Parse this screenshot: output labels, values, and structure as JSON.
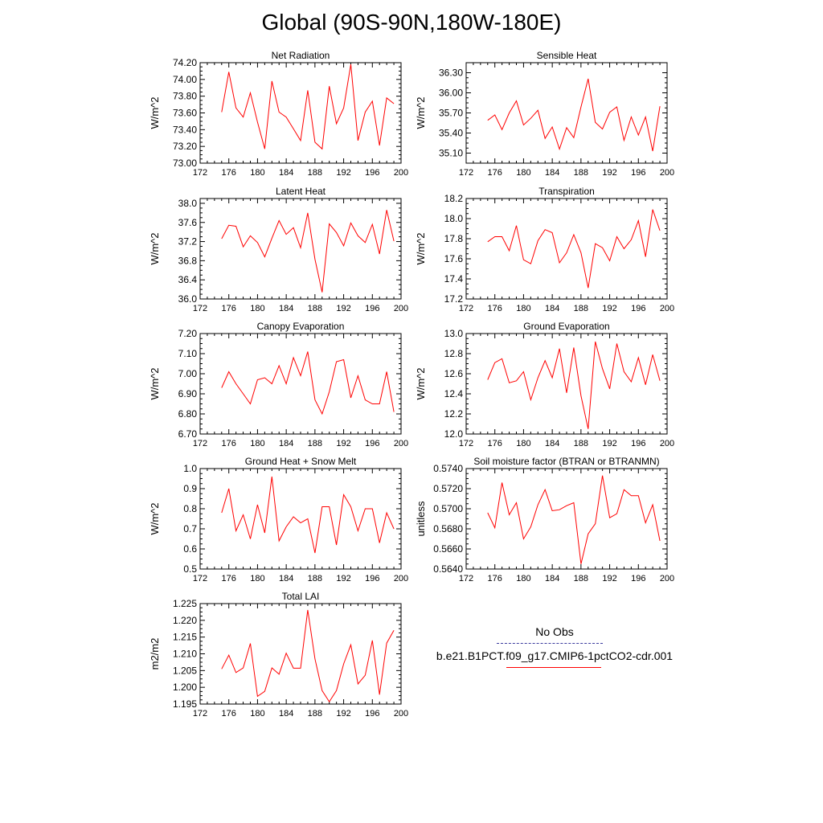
{
  "title": "Global (90S-90N,180W-180E)",
  "legend": {
    "items": [
      {
        "label": "No Obs",
        "color": "#3b3b9e",
        "style": "dashed"
      },
      {
        "label": "b.e21.B1PCT.f09_g17.CMIP6-1pctCO2-cdr.001",
        "color": "#ff0000",
        "style": "solid"
      }
    ]
  },
  "chart_data": [
    {
      "type": "line",
      "title": "Net Radiation",
      "ylabel": "W/m^2",
      "xlim": [
        172,
        200
      ],
      "ylim": [
        73.0,
        74.2
      ],
      "xticks": [
        172,
        176,
        180,
        184,
        188,
        192,
        196,
        200
      ],
      "yticks": [
        73.0,
        73.2,
        73.4,
        73.6,
        73.8,
        74.0,
        74.2
      ],
      "ytick_labels": [
        "73.00",
        "73.20",
        "73.40",
        "73.60",
        "73.80",
        "74.00",
        "74.20"
      ],
      "x": [
        175,
        176,
        177,
        178,
        179,
        180,
        181,
        182,
        183,
        184,
        185,
        186,
        187,
        188,
        189,
        190,
        191,
        192,
        193,
        194,
        195,
        196,
        197,
        198,
        199
      ],
      "series": [
        {
          "color": "#ff0000",
          "values": [
            73.61,
            74.09,
            73.66,
            73.55,
            73.84,
            73.49,
            73.17,
            73.98,
            73.61,
            73.55,
            73.41,
            73.27,
            73.87,
            73.25,
            73.17,
            73.92,
            73.47,
            73.66,
            74.18,
            73.27,
            73.61,
            73.74,
            73.21,
            73.78,
            73.71
          ]
        }
      ]
    },
    {
      "type": "line",
      "title": "Sensible Heat",
      "ylabel": "W/m^2",
      "xlim": [
        172,
        200
      ],
      "ylim": [
        34.95,
        36.45
      ],
      "xticks": [
        172,
        176,
        180,
        184,
        188,
        192,
        196,
        200
      ],
      "yticks": [
        35.1,
        35.4,
        35.7,
        36.0,
        36.3
      ],
      "ytick_labels": [
        "35.10",
        "35.40",
        "35.70",
        "36.00",
        "36.30"
      ],
      "x": [
        175,
        176,
        177,
        178,
        179,
        180,
        181,
        182,
        183,
        184,
        185,
        186,
        187,
        188,
        189,
        190,
        191,
        192,
        193,
        194,
        195,
        196,
        197,
        198,
        199
      ],
      "series": [
        {
          "color": "#ff0000",
          "values": [
            35.59,
            35.67,
            35.45,
            35.7,
            35.88,
            35.52,
            35.62,
            35.74,
            35.32,
            35.49,
            35.16,
            35.48,
            35.33,
            35.79,
            36.21,
            35.56,
            35.46,
            35.71,
            35.79,
            35.29,
            35.64,
            35.37,
            35.64,
            35.13,
            35.8
          ]
        }
      ]
    },
    {
      "type": "line",
      "title": "Latent Heat",
      "ylabel": "W/m^2",
      "xlim": [
        172,
        200
      ],
      "ylim": [
        36.0,
        38.1
      ],
      "xticks": [
        172,
        176,
        180,
        184,
        188,
        192,
        196,
        200
      ],
      "yticks": [
        36.0,
        36.4,
        36.8,
        37.2,
        37.6,
        38.0
      ],
      "ytick_labels": [
        "36.0",
        "36.4",
        "36.8",
        "37.2",
        "37.6",
        "38.0"
      ],
      "x": [
        175,
        176,
        177,
        178,
        179,
        180,
        181,
        182,
        183,
        184,
        185,
        186,
        187,
        188,
        189,
        190,
        191,
        192,
        193,
        194,
        195,
        196,
        197,
        198,
        199
      ],
      "series": [
        {
          "color": "#ff0000",
          "values": [
            37.26,
            37.54,
            37.52,
            37.09,
            37.32,
            37.18,
            36.88,
            37.27,
            37.64,
            37.35,
            37.49,
            37.07,
            37.8,
            36.83,
            36.14,
            37.57,
            37.39,
            37.11,
            37.59,
            37.32,
            37.18,
            37.56,
            36.94,
            37.86,
            37.21
          ]
        }
      ]
    },
    {
      "type": "line",
      "title": "Transpiration",
      "ylabel": "W/m^2",
      "xlim": [
        172,
        200
      ],
      "ylim": [
        17.2,
        18.2
      ],
      "xticks": [
        172,
        176,
        180,
        184,
        188,
        192,
        196,
        200
      ],
      "yticks": [
        17.2,
        17.4,
        17.6,
        17.8,
        18.0,
        18.2
      ],
      "ytick_labels": [
        "17.2",
        "17.4",
        "17.6",
        "17.8",
        "18.0",
        "18.2"
      ],
      "x": [
        175,
        176,
        177,
        178,
        179,
        180,
        181,
        182,
        183,
        184,
        185,
        186,
        187,
        188,
        189,
        190,
        191,
        192,
        193,
        194,
        195,
        196,
        197,
        198,
        199
      ],
      "series": [
        {
          "color": "#ff0000",
          "values": [
            17.77,
            17.82,
            17.82,
            17.68,
            17.93,
            17.59,
            17.55,
            17.78,
            17.89,
            17.86,
            17.56,
            17.66,
            17.84,
            17.66,
            17.31,
            17.75,
            17.71,
            17.58,
            17.82,
            17.7,
            17.79,
            17.98,
            17.62,
            18.09,
            17.88
          ]
        }
      ]
    },
    {
      "type": "line",
      "title": "Canopy Evaporation",
      "ylabel": "W/m^2",
      "xlim": [
        172,
        200
      ],
      "ylim": [
        6.7,
        7.2
      ],
      "xticks": [
        172,
        176,
        180,
        184,
        188,
        192,
        196,
        200
      ],
      "yticks": [
        6.7,
        6.8,
        6.9,
        7.0,
        7.1,
        7.2
      ],
      "ytick_labels": [
        "6.70",
        "6.80",
        "6.90",
        "7.00",
        "7.10",
        "7.20"
      ],
      "x": [
        175,
        176,
        177,
        178,
        179,
        180,
        181,
        182,
        183,
        184,
        185,
        186,
        187,
        188,
        189,
        190,
        191,
        192,
        193,
        194,
        195,
        196,
        197,
        198,
        199
      ],
      "series": [
        {
          "color": "#ff0000",
          "values": [
            6.93,
            7.01,
            6.95,
            6.9,
            6.85,
            6.97,
            6.98,
            6.95,
            7.04,
            6.95,
            7.08,
            6.99,
            7.11,
            6.87,
            6.8,
            6.91,
            7.06,
            7.07,
            6.88,
            6.99,
            6.87,
            6.85,
            6.85,
            7.01,
            6.81
          ]
        }
      ]
    },
    {
      "type": "line",
      "title": "Ground Evaporation",
      "ylabel": "W/m^2",
      "xlim": [
        172,
        200
      ],
      "ylim": [
        12.0,
        13.0
      ],
      "xticks": [
        172,
        176,
        180,
        184,
        188,
        192,
        196,
        200
      ],
      "yticks": [
        12.0,
        12.2,
        12.4,
        12.6,
        12.8,
        13.0
      ],
      "ytick_labels": [
        "12.0",
        "12.2",
        "12.4",
        "12.6",
        "12.8",
        "13.0"
      ],
      "x": [
        175,
        176,
        177,
        178,
        179,
        180,
        181,
        182,
        183,
        184,
        185,
        186,
        187,
        188,
        189,
        190,
        191,
        192,
        193,
        194,
        195,
        196,
        197,
        198,
        199
      ],
      "series": [
        {
          "color": "#ff0000",
          "values": [
            12.54,
            12.71,
            12.75,
            12.51,
            12.53,
            12.62,
            12.34,
            12.56,
            12.73,
            12.56,
            12.85,
            12.41,
            12.86,
            12.38,
            12.05,
            12.92,
            12.65,
            12.45,
            12.9,
            12.62,
            12.52,
            12.76,
            12.49,
            12.79,
            12.53
          ]
        }
      ]
    },
    {
      "type": "line",
      "title": "Ground Heat + Snow Melt",
      "ylabel": "W/m^2",
      "xlim": [
        172,
        200
      ],
      "ylim": [
        0.5,
        1.0
      ],
      "xticks": [
        172,
        176,
        180,
        184,
        188,
        192,
        196,
        200
      ],
      "yticks": [
        0.5,
        0.6,
        0.7,
        0.8,
        0.9,
        1.0
      ],
      "ytick_labels": [
        "0.5",
        "0.6",
        "0.7",
        "0.8",
        "0.9",
        "1.0"
      ],
      "x": [
        175,
        176,
        177,
        178,
        179,
        180,
        181,
        182,
        183,
        184,
        185,
        186,
        187,
        188,
        189,
        190,
        191,
        192,
        193,
        194,
        195,
        196,
        197,
        198,
        199
      ],
      "series": [
        {
          "color": "#ff0000",
          "values": [
            0.78,
            0.9,
            0.69,
            0.77,
            0.65,
            0.82,
            0.68,
            0.96,
            0.64,
            0.71,
            0.76,
            0.73,
            0.75,
            0.58,
            0.81,
            0.81,
            0.62,
            0.87,
            0.81,
            0.69,
            0.8,
            0.8,
            0.63,
            0.78,
            0.7
          ]
        }
      ]
    },
    {
      "type": "line",
      "title": "Soil moisture factor (BTRAN or BTRANMN)",
      "ylabel": "unitless",
      "xlim": [
        172,
        200
      ],
      "ylim": [
        0.564,
        0.574
      ],
      "xticks": [
        172,
        176,
        180,
        184,
        188,
        192,
        196,
        200
      ],
      "yticks": [
        0.564,
        0.566,
        0.568,
        0.57,
        0.572,
        0.574
      ],
      "ytick_labels": [
        "0.5640",
        "0.5660",
        "0.5680",
        "0.5700",
        "0.5720",
        "0.5740"
      ],
      "x": [
        175,
        176,
        177,
        178,
        179,
        180,
        181,
        182,
        183,
        184,
        185,
        186,
        187,
        188,
        189,
        190,
        191,
        192,
        193,
        194,
        195,
        196,
        197,
        198,
        199
      ],
      "series": [
        {
          "color": "#ff0000",
          "values": [
            0.5696,
            0.5681,
            0.5726,
            0.5694,
            0.5706,
            0.567,
            0.5682,
            0.5704,
            0.5719,
            0.5698,
            0.5699,
            0.5703,
            0.5706,
            0.5645,
            0.5675,
            0.5685,
            0.5733,
            0.5691,
            0.5695,
            0.5719,
            0.5713,
            0.5713,
            0.5686,
            0.5704,
            0.5668
          ]
        }
      ]
    },
    {
      "type": "line",
      "title": "Total LAI",
      "ylabel": "m2/m2",
      "xlim": [
        172,
        200
      ],
      "ylim": [
        1.195,
        1.225
      ],
      "xticks": [
        172,
        176,
        180,
        184,
        188,
        192,
        196,
        200
      ],
      "yticks": [
        1.195,
        1.2,
        1.205,
        1.21,
        1.215,
        1.22,
        1.225
      ],
      "ytick_labels": [
        "1.195",
        "1.200",
        "1.205",
        "1.210",
        "1.215",
        "1.220",
        "1.225"
      ],
      "x": [
        175,
        176,
        177,
        178,
        179,
        180,
        181,
        182,
        183,
        184,
        185,
        186,
        187,
        188,
        189,
        190,
        191,
        192,
        193,
        194,
        195,
        196,
        197,
        198,
        199
      ],
      "series": [
        {
          "color": "#ff0000",
          "values": [
            1.2055,
            1.2096,
            1.2044,
            1.2058,
            1.2131,
            1.1973,
            1.1988,
            1.2058,
            1.2039,
            1.2102,
            1.2057,
            1.2057,
            1.2231,
            1.2085,
            1.199,
            1.1957,
            1.199,
            1.207,
            1.2127,
            1.201,
            1.2036,
            1.214,
            1.1978,
            1.2132,
            1.217
          ]
        }
      ]
    }
  ]
}
